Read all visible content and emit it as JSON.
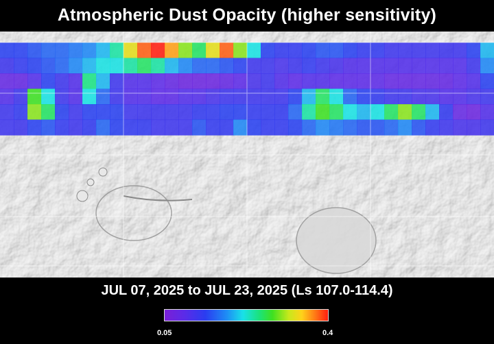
{
  "title": "Atmospheric Dust Opacity (higher sensitivity)",
  "date_range": "JUL 07, 2025 to JUL 23, 2025 (Ls 107.0-114.4)",
  "colorbar": {
    "min_label": "0.05",
    "max_label": "0.4",
    "min_value": 0.05,
    "max_value": 0.4
  },
  "colors": {
    "background": "#000000",
    "text": "#ffffff",
    "basemap": "#c9c9c9",
    "grid": "#ffffff"
  },
  "basemap": {
    "type": "shaded-relief",
    "projection": "cylindrical"
  },
  "opacity_band": {
    "rows": 6,
    "cols": 36,
    "values": [
      [
        0.14,
        0.14,
        0.15,
        0.16,
        0.16,
        0.17,
        0.18,
        0.2,
        0.24,
        0.33,
        0.38,
        0.4,
        0.36,
        0.3,
        0.26,
        0.33,
        0.38,
        0.3,
        0.22,
        0.14,
        0.13,
        0.13,
        0.14,
        0.15,
        0.15,
        0.14,
        0.13,
        0.13,
        0.12,
        0.12,
        0.12,
        0.12,
        0.12,
        0.12,
        0.14,
        0.2
      ],
      [
        0.12,
        0.13,
        0.14,
        0.15,
        0.16,
        0.18,
        0.2,
        0.22,
        0.22,
        0.24,
        0.26,
        0.24,
        0.2,
        0.18,
        0.16,
        0.16,
        0.15,
        0.14,
        0.12,
        0.12,
        0.11,
        0.12,
        0.13,
        0.12,
        0.11,
        0.1,
        0.1,
        0.1,
        0.1,
        0.1,
        0.1,
        0.1,
        0.1,
        0.1,
        0.12,
        0.18
      ],
      [
        0.08,
        0.08,
        0.1,
        0.14,
        0.12,
        0.1,
        0.25,
        0.2,
        0.12,
        0.1,
        0.1,
        0.09,
        0.08,
        0.07,
        0.07,
        0.07,
        0.08,
        0.09,
        0.11,
        0.12,
        0.1,
        0.09,
        0.1,
        0.1,
        0.09,
        0.09,
        0.09,
        0.09,
        0.08,
        0.08,
        0.08,
        0.08,
        0.08,
        0.09,
        0.1,
        0.14
      ],
      [
        0.1,
        0.12,
        0.28,
        0.22,
        0.12,
        0.1,
        0.22,
        0.16,
        0.12,
        0.1,
        0.1,
        0.09,
        0.09,
        0.1,
        0.1,
        0.11,
        0.12,
        0.12,
        0.12,
        0.12,
        0.12,
        0.14,
        0.2,
        0.26,
        0.22,
        0.16,
        0.14,
        0.13,
        0.12,
        0.12,
        0.11,
        0.11,
        0.1,
        0.1,
        0.11,
        0.12
      ],
      [
        0.12,
        0.13,
        0.3,
        0.26,
        0.14,
        0.12,
        0.14,
        0.14,
        0.14,
        0.12,
        0.12,
        0.12,
        0.12,
        0.12,
        0.13,
        0.13,
        0.14,
        0.14,
        0.13,
        0.13,
        0.13,
        0.16,
        0.24,
        0.28,
        0.26,
        0.22,
        0.2,
        0.22,
        0.26,
        0.3,
        0.26,
        0.2,
        0.13,
        0.08,
        0.07,
        0.1
      ],
      [
        0.12,
        0.12,
        0.14,
        0.15,
        0.13,
        0.12,
        0.13,
        0.16,
        0.14,
        0.13,
        0.13,
        0.12,
        0.12,
        0.12,
        0.15,
        0.13,
        0.13,
        0.18,
        0.14,
        0.13,
        0.13,
        0.14,
        0.16,
        0.18,
        0.17,
        0.16,
        0.15,
        0.15,
        0.16,
        0.18,
        0.15,
        0.13,
        0.12,
        0.11,
        0.11,
        0.12
      ]
    ]
  }
}
